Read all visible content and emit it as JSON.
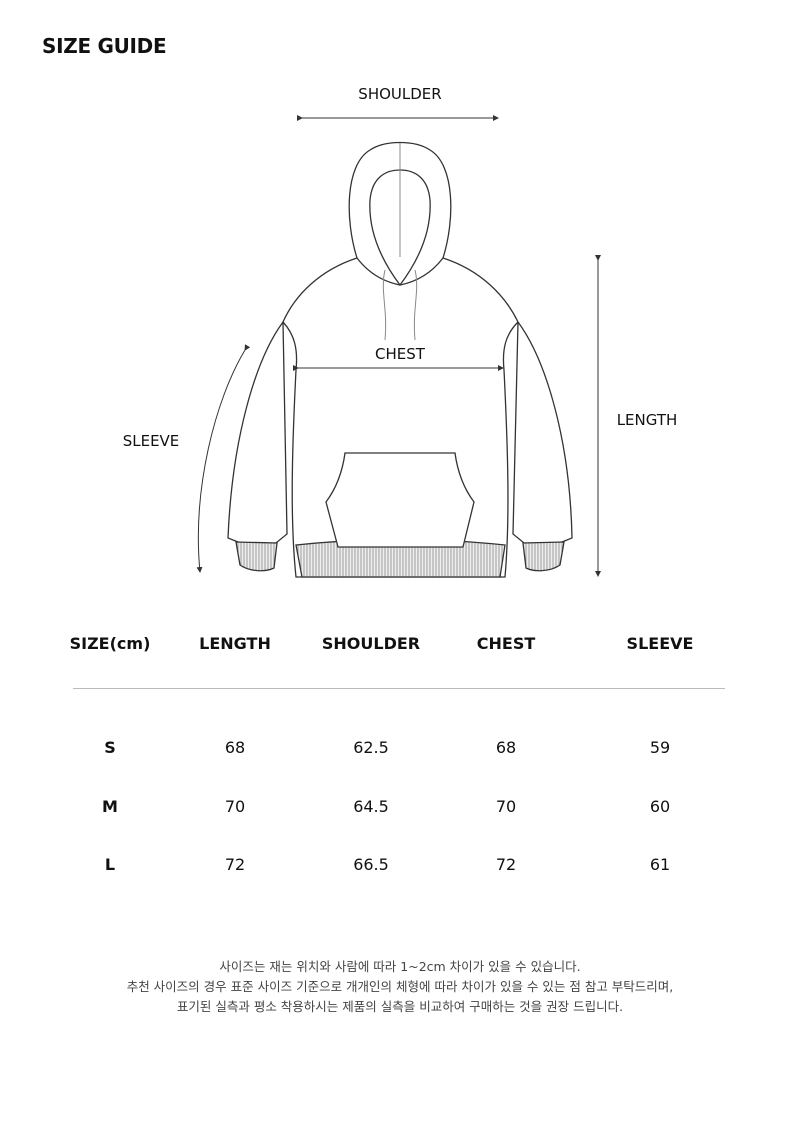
{
  "title": "SIZE GUIDE",
  "diagram_labels": {
    "shoulder": "SHOULDER",
    "chest": "CHEST",
    "sleeve": "SLEEVE",
    "length": "LENGTH"
  },
  "table": {
    "headers": [
      "SIZE(cm)",
      "LENGTH",
      "SHOULDER",
      "CHEST",
      "SLEEVE"
    ],
    "rows": [
      [
        "S",
        "68",
        "62.5",
        "68",
        "59"
      ],
      [
        "M",
        "70",
        "64.5",
        "70",
        "60"
      ],
      [
        "L",
        "72",
        "66.5",
        "72",
        "61"
      ]
    ]
  },
  "notes": [
    "사이즈는 재는 위치와 사람에 따라 1~2cm 차이가 있을 수 있습니다.",
    "추천 사이즈의 경우 표준 사이즈 기준으로 개개인의 체형에 따라 차이가 있을 수 있는 점 참고 부탁드리며,",
    "표기된 실측과 평소 착용하시는 제품의 실측을 비교하여 구매하는 것을 권장 드립니다."
  ]
}
